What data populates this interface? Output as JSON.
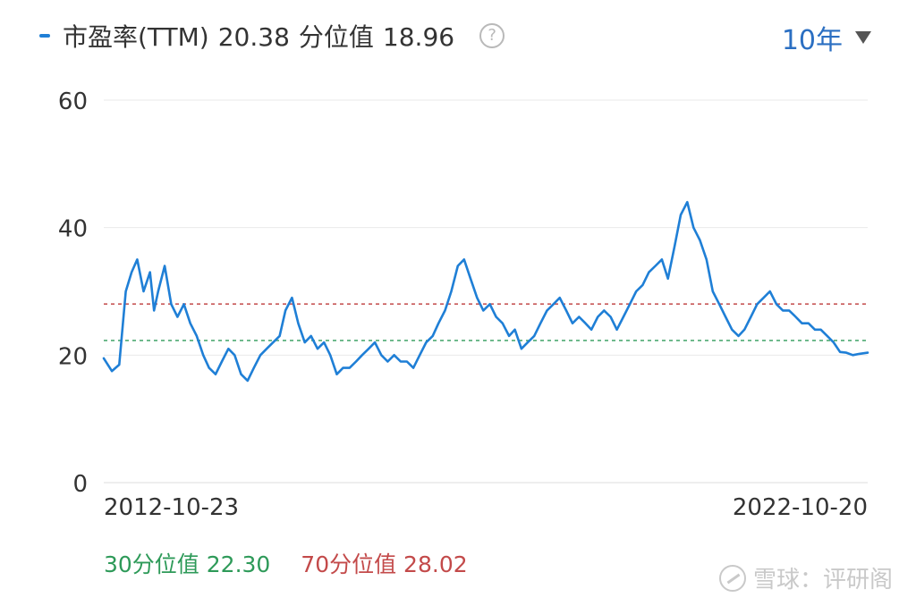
{
  "header": {
    "metric_label": "市盈率(TTM)",
    "current_value": "20.38",
    "percentile_label": "分位值",
    "percentile_value": "18.96",
    "help_icon": "question-circle-icon"
  },
  "range_selector": {
    "label": "10年",
    "icon": "caret-down-icon"
  },
  "footer": {
    "p30_text": "30分位值 22.30",
    "p70_text": "70分位值 28.02"
  },
  "watermark": {
    "text": "雪球：评研阁",
    "icon": "xueqiu-logo-icon"
  },
  "colors": {
    "line": "#1f7fd6",
    "p30": "#2e9a59",
    "p70": "#c34a4a",
    "grid": "#e9e9e9",
    "range": "#2b6fc2"
  },
  "chart_data": {
    "type": "line",
    "title": "",
    "xlabel": "",
    "ylabel": "",
    "ylim": [
      0,
      60
    ],
    "y_ticks": [
      "0",
      "20",
      "40",
      "60"
    ],
    "x_tick_labels": [
      "2012-10-23",
      "2022-10-20"
    ],
    "x_range": [
      "2012-10-23",
      "2022-10-20"
    ],
    "grid": true,
    "reference_lines": [
      {
        "label": "30分位值",
        "value": 22.3,
        "style": "dashed",
        "color": "#2e9a59"
      },
      {
        "label": "70分位值",
        "value": 28.02,
        "style": "dashed",
        "color": "#c34a4a"
      }
    ],
    "series": [
      {
        "name": "市盈率(TTM)",
        "x": [
          "2012-10-23",
          "2012-12-01",
          "2013-01-05",
          "2013-02-05",
          "2013-03-05",
          "2013-04-01",
          "2013-05-01",
          "2013-06-01",
          "2013-06-20",
          "2013-07-10",
          "2013-08-10",
          "2013-09-10",
          "2013-10-10",
          "2013-11-10",
          "2013-12-10",
          "2014-01-10",
          "2014-02-10",
          "2014-03-10",
          "2014-04-10",
          "2014-05-10",
          "2014-06-10",
          "2014-07-10",
          "2014-08-10",
          "2014-09-10",
          "2014-10-10",
          "2014-11-10",
          "2014-12-10",
          "2015-01-10",
          "2015-02-10",
          "2015-03-10",
          "2015-04-10",
          "2015-05-10",
          "2015-06-10",
          "2015-07-10",
          "2015-08-10",
          "2015-09-10",
          "2015-10-10",
          "2015-11-10",
          "2015-12-10",
          "2016-01-10",
          "2016-02-10",
          "2016-03-10",
          "2016-04-10",
          "2016-05-10",
          "2016-06-10",
          "2016-07-10",
          "2016-08-10",
          "2016-09-10",
          "2016-10-10",
          "2016-11-10",
          "2016-12-10",
          "2017-01-10",
          "2017-02-10",
          "2017-03-10",
          "2017-04-10",
          "2017-05-10",
          "2017-06-10",
          "2017-07-10",
          "2017-08-10",
          "2017-09-10",
          "2017-10-10",
          "2017-11-10",
          "2017-12-10",
          "2018-01-10",
          "2018-02-10",
          "2018-03-10",
          "2018-04-10",
          "2018-05-10",
          "2018-06-10",
          "2018-07-10",
          "2018-08-10",
          "2018-09-10",
          "2018-10-10",
          "2018-11-10",
          "2018-12-10",
          "2019-01-10",
          "2019-02-10",
          "2019-03-10",
          "2019-04-10",
          "2019-05-10",
          "2019-06-10",
          "2019-07-10",
          "2019-08-10",
          "2019-09-10",
          "2019-10-10",
          "2019-11-10",
          "2019-12-10",
          "2020-01-10",
          "2020-02-10",
          "2020-03-10",
          "2020-04-10",
          "2020-05-10",
          "2020-06-10",
          "2020-07-10",
          "2020-08-10",
          "2020-09-10",
          "2020-10-10",
          "2020-11-10",
          "2020-12-10",
          "2021-01-10",
          "2021-02-10",
          "2021-03-10",
          "2021-04-10",
          "2021-05-10",
          "2021-06-10",
          "2021-07-10",
          "2021-08-10",
          "2021-09-10",
          "2021-10-10",
          "2021-11-10",
          "2021-12-10",
          "2022-01-10",
          "2022-02-10",
          "2022-03-10",
          "2022-04-10",
          "2022-05-10",
          "2022-06-10",
          "2022-07-10",
          "2022-08-10",
          "2022-09-10",
          "2022-10-20"
        ],
        "values": [
          19.5,
          17.5,
          18.5,
          30,
          33,
          35,
          30,
          33,
          27,
          30,
          34,
          28,
          26,
          28,
          25,
          23,
          20,
          18,
          17,
          19,
          21,
          20,
          17,
          16,
          18,
          20,
          21,
          22,
          23,
          27,
          29,
          25,
          22,
          23,
          21,
          22,
          20,
          17,
          18,
          18,
          19,
          20,
          21,
          22,
          20,
          19,
          20,
          19,
          19,
          18,
          20,
          22,
          23,
          25,
          27,
          30,
          34,
          35,
          32,
          29,
          27,
          28,
          26,
          25,
          23,
          24,
          21,
          22,
          23,
          25,
          27,
          28,
          29,
          27,
          25,
          26,
          25,
          24,
          26,
          27,
          26,
          24,
          26,
          28,
          30,
          31,
          33,
          34,
          35,
          32,
          37,
          42,
          44,
          40,
          38,
          35,
          30,
          28,
          26,
          24,
          23,
          24,
          26,
          28,
          29,
          30,
          28,
          27,
          27,
          26,
          25,
          25,
          24,
          24,
          23,
          22,
          20.5,
          20.38,
          20,
          20.2,
          20.38
        ]
      }
    ]
  }
}
